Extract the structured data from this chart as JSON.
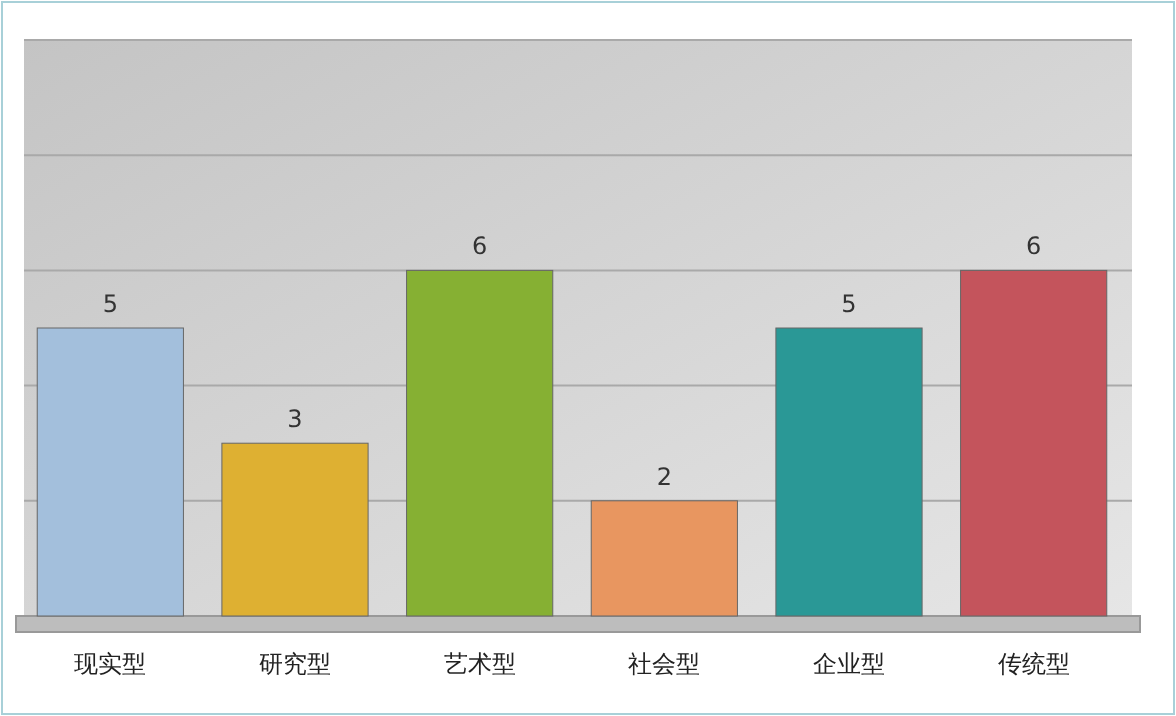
{
  "chart_data": {
    "type": "bar",
    "categories": [
      "现实型",
      "研究型",
      "艺术型",
      "社会型",
      "企业型",
      "传统型"
    ],
    "values": [
      5,
      3,
      6,
      2,
      5,
      6
    ],
    "colors": [
      "#a3bfdc",
      "#deb032",
      "#86b033",
      "#e89660",
      "#2a9896",
      "#c4545c"
    ],
    "data_labels": true,
    "grid": "y",
    "ylim": [
      0,
      10
    ],
    "yticks": [
      {
        "value": 0,
        "label": null
      },
      {
        "value": 2,
        "label": null
      },
      {
        "value": 4,
        "label": null
      },
      {
        "value": 6,
        "label": null
      },
      {
        "value": 8,
        "label": null
      },
      {
        "value": 10,
        "label": null
      }
    ],
    "tick_labels": "x"
  }
}
